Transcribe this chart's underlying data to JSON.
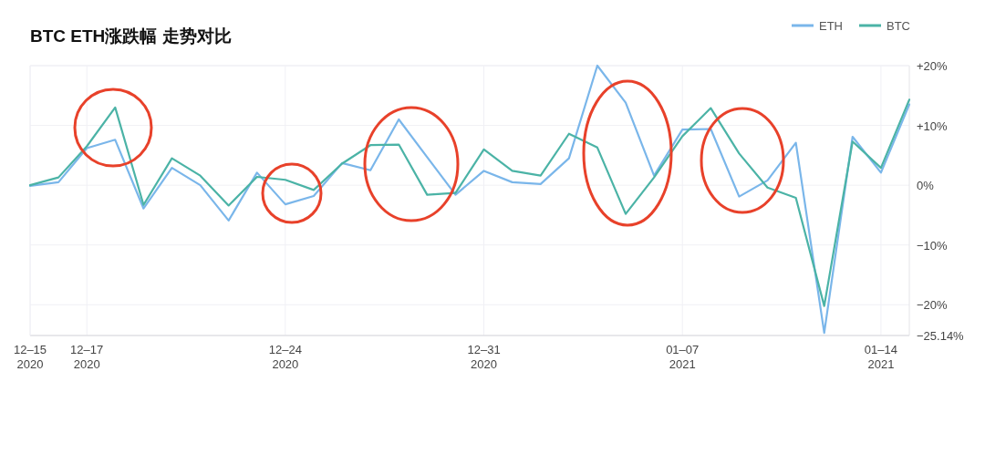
{
  "chart_data": {
    "type": "line",
    "title": "BTC ETH涨跌幅 走势对比",
    "x": [
      "2020-12-15",
      "2020-12-16",
      "2020-12-17",
      "2020-12-18",
      "2020-12-19",
      "2020-12-20",
      "2020-12-21",
      "2020-12-22",
      "2020-12-23",
      "2020-12-24",
      "2020-12-25",
      "2020-12-26",
      "2020-12-27",
      "2020-12-28",
      "2020-12-29",
      "2020-12-30",
      "2020-12-31",
      "2021-01-01",
      "2021-01-02",
      "2021-01-03",
      "2021-01-04",
      "2021-01-05",
      "2021-01-06",
      "2021-01-07",
      "2021-01-08",
      "2021-01-09",
      "2021-01-10",
      "2021-01-11",
      "2021-01-12",
      "2021-01-13",
      "2021-01-14",
      "2021-01-15"
    ],
    "series": [
      {
        "name": "ETH",
        "color": "#7ab6ea",
        "values": [
          -0.1,
          0.5,
          6.2,
          7.6,
          -3.9,
          2.9,
          0,
          -5.9,
          2.1,
          -3.2,
          -1.8,
          3.7,
          2.5,
          11.0,
          4.7,
          -1.6,
          2.4,
          0.5,
          0.2,
          4.5,
          20,
          13.8,
          1.6,
          9.3,
          9.4,
          -1.9,
          0.8,
          7.1,
          -24.7,
          8.1,
          2.1,
          13.5
        ]
      },
      {
        "name": "BTC",
        "color": "#4bb3a6",
        "values": [
          0,
          1.3,
          6.5,
          13.0,
          -3.3,
          4.5,
          1.6,
          -3.4,
          1.4,
          0.9,
          -0.8,
          3.6,
          6.7,
          6.8,
          -1.6,
          -1.3,
          6.0,
          2.4,
          1.6,
          8.6,
          6.3,
          -4.8,
          1.3,
          8.2,
          12.9,
          5.3,
          -0.4,
          -2.1,
          -20.2,
          7.3,
          2.9,
          14.3
        ]
      }
    ],
    "xlim": [
      "2020-12-15",
      "2021-01-15"
    ],
    "xticks": [
      {
        "value": "2020-12-15",
        "label": "12–15\n2020"
      },
      {
        "value": "2020-12-17",
        "label": "12–17\n2020"
      },
      {
        "value": "2020-12-24",
        "label": "12–24\n2020"
      },
      {
        "value": "2020-12-31",
        "label": "12–31\n2020"
      },
      {
        "value": "2021-01-07",
        "label": "01–07\n2021"
      },
      {
        "value": "2021-01-14",
        "label": "01–14\n2021"
      }
    ],
    "ylim": [
      -25.14,
      20
    ],
    "yticks": [
      {
        "value": 20,
        "label": "+20%"
      },
      {
        "value": 10,
        "label": "+10%"
      },
      {
        "value": 0,
        "label": "0%"
      },
      {
        "value": -10,
        "label": "−10%"
      },
      {
        "value": -20,
        "label": "−20%"
      },
      {
        "value": -25.14,
        "label": "−25.14%"
      }
    ],
    "grid": true,
    "legend": "top right",
    "marker": "none",
    "line_style": "solid"
  }
}
